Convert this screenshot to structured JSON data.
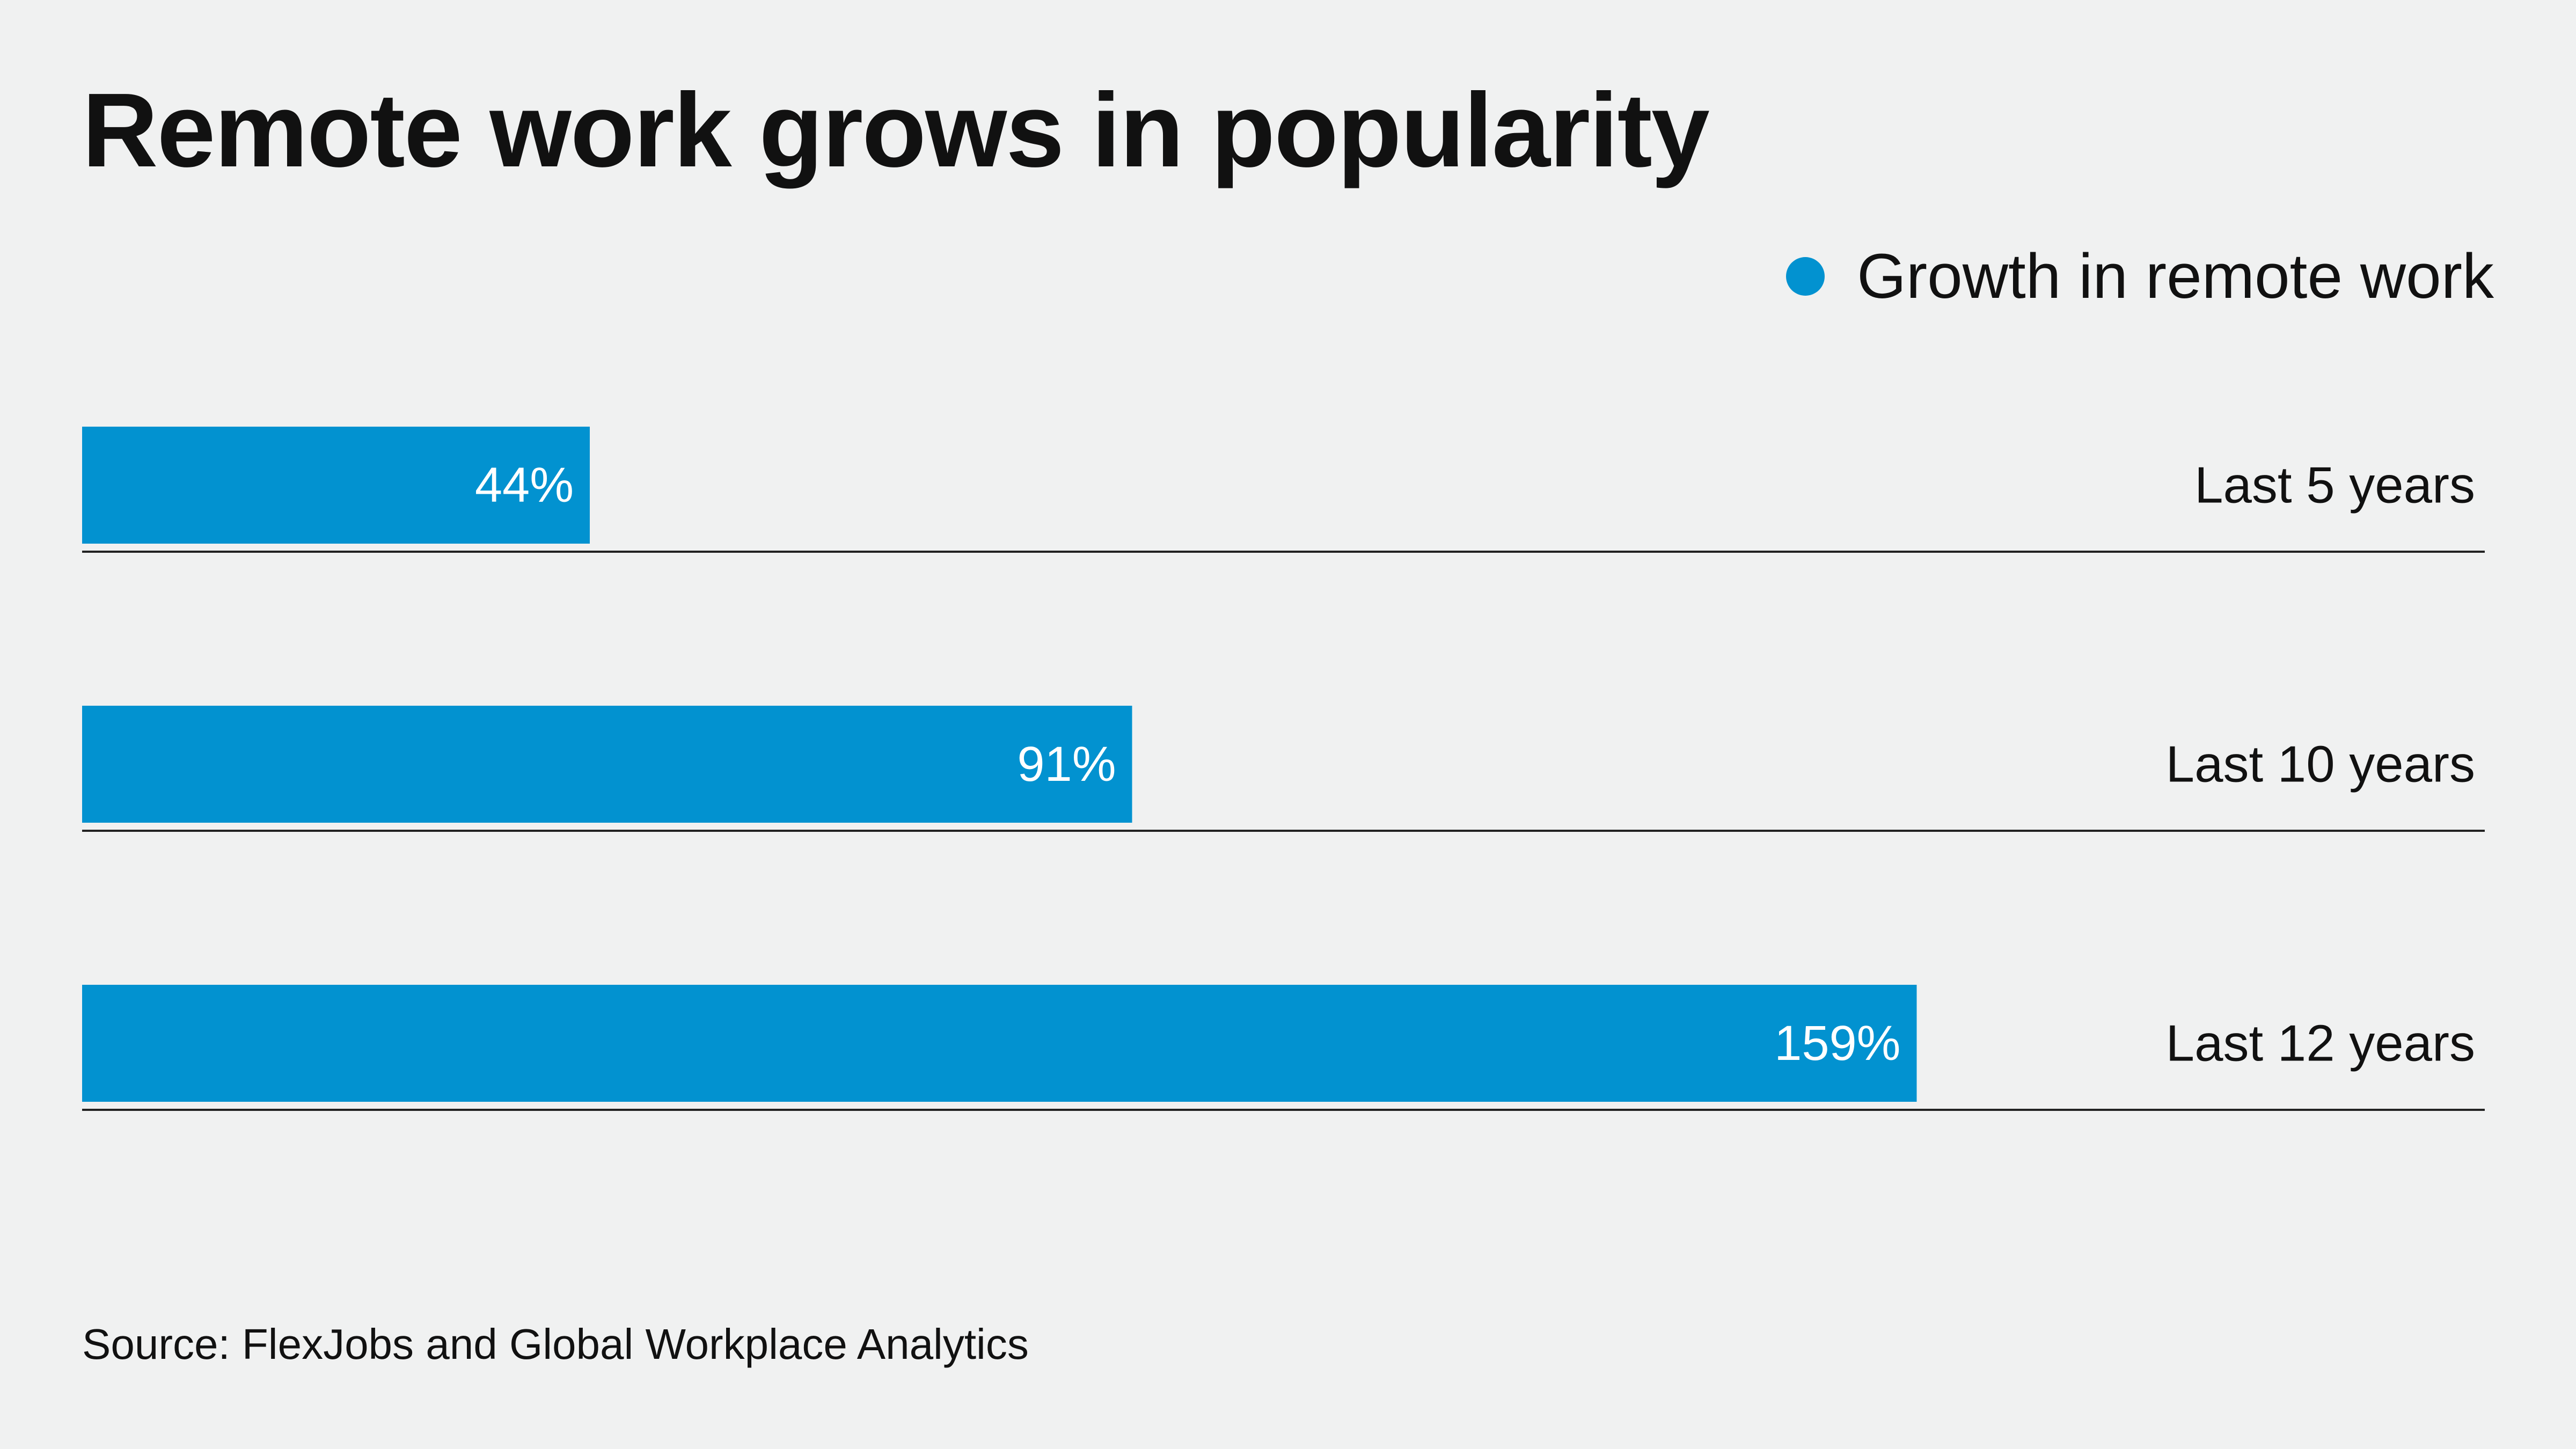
{
  "colors": {
    "background": "#f0f1f1",
    "bar": "#0292d0",
    "text": "#111111",
    "bar_text": "#ffffff",
    "baseline": "#222222"
  },
  "chart_data": {
    "type": "bar",
    "orientation": "horizontal",
    "title": "Remote work grows in popularity",
    "legend": [
      {
        "label": "Growth in remote work",
        "color": "#0292d0"
      }
    ],
    "categories": [
      "Last 5 years",
      "Last 10 years",
      "Last 12 years"
    ],
    "series": [
      {
        "name": "Growth in remote work",
        "values": [
          44,
          91,
          159
        ],
        "labels": [
          "44%",
          "91%",
          "159%"
        ]
      }
    ],
    "unit": "%",
    "xlim": [
      0,
      210
    ],
    "grid": false,
    "legend_position": "top-right",
    "source": "Source: FlexJobs and Global Workplace Analytics"
  }
}
